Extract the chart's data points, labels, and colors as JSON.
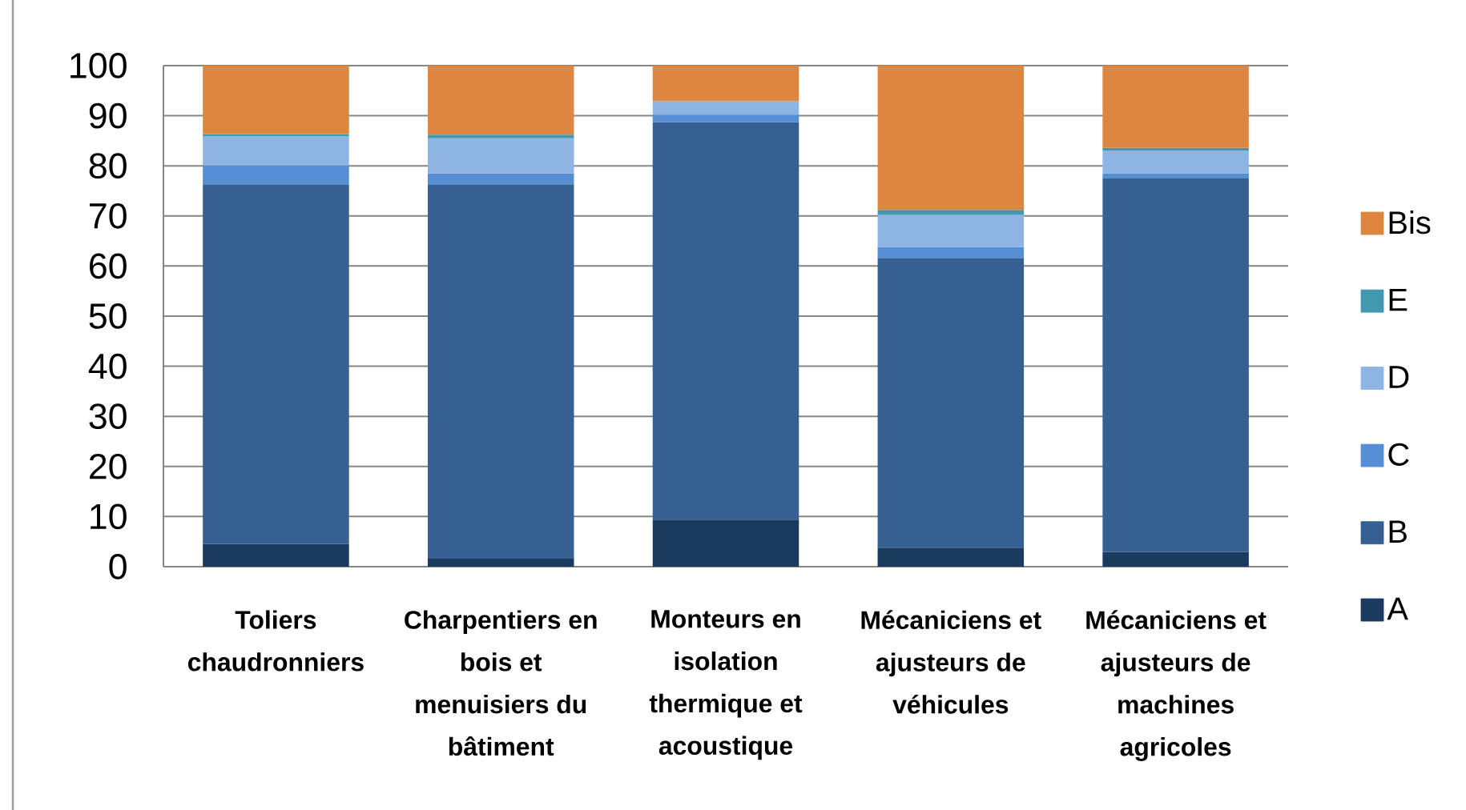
{
  "chart_data": {
    "type": "bar",
    "stacked": true,
    "categories": [
      "Toliers chaudronniers",
      "Charpentiers en bois et menuisiers du bâtiment",
      "Monteurs en isolation thermique et acoustique",
      "Mécaniciens et ajusteurs de véhicules",
      "Mécaniciens et ajusteurs de machines agricoles"
    ],
    "series": [
      {
        "name": "A",
        "color": "#1a3a60",
        "values": [
          4.5,
          1.6,
          9.4,
          3.8,
          2.9
        ]
      },
      {
        "name": "B",
        "color": "#366092",
        "values": [
          71.8,
          74.7,
          79.3,
          57.8,
          74.7
        ]
      },
      {
        "name": "C",
        "color": "#558ed5",
        "values": [
          3.8,
          2.2,
          1.5,
          2.2,
          0.9
        ]
      },
      {
        "name": "D",
        "color": "#8eb4e3",
        "values": [
          5.8,
          7.0,
          2.7,
          6.4,
          4.5
        ]
      },
      {
        "name": "E",
        "color": "#4198af",
        "values": [
          0.4,
          0.7,
          null,
          1.0,
          0.6
        ]
      },
      {
        "name": "Bis",
        "color": "#dd8640",
        "values": [
          13.7,
          13.8,
          7.1,
          28.8,
          16.4
        ]
      }
    ],
    "ylim": [
      0,
      100
    ],
    "yticks": [
      0,
      10,
      20,
      30,
      40,
      50,
      60,
      70,
      80,
      90,
      100
    ],
    "grid": "y",
    "legend": "right"
  }
}
